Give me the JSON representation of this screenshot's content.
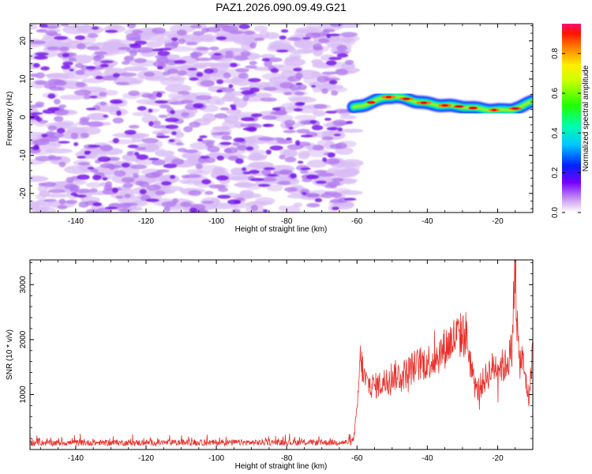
{
  "title": "PAZ1.2026.090.09.49.G21",
  "chart_data": [
    {
      "type": "heatmap",
      "xlabel": "Height of straight line (km)",
      "ylabel": "Frequency (Hz)",
      "xlim": [
        -153,
        -10
      ],
      "ylim": [
        -25,
        24.5
      ],
      "xticks": [
        -140,
        -120,
        -100,
        -80,
        -60,
        -40,
        -20
      ],
      "yticks": [
        -20,
        -10,
        0,
        10,
        20
      ],
      "noise_region_x": [
        -153,
        -61
      ],
      "signal_region_x": [
        -61,
        -10
      ],
      "signal_ridge": {
        "x": [
          -61,
          -58,
          -55,
          -52,
          -49,
          -46,
          -43,
          -40,
          -37,
          -34,
          -31,
          -28,
          -25,
          -22,
          -19,
          -16,
          -13,
          -10
        ],
        "freq": [
          2.5,
          3.2,
          4.2,
          5.2,
          5.4,
          4.8,
          4.1,
          3.6,
          3.2,
          3.0,
          2.8,
          2.5,
          2.2,
          1.9,
          1.8,
          2.0,
          2.8,
          4.3
        ]
      },
      "colorbar": {
        "label": "Normalized spectral amplitude",
        "range": [
          0,
          0.95
        ],
        "ticks": [
          "0.0",
          "0.2",
          "0.4",
          "0.6",
          "0.8"
        ]
      }
    },
    {
      "type": "line",
      "xlabel": "Height of straight line (km)",
      "ylabel": "SNR (10 * v/v)",
      "xlim": [
        -153,
        -10
      ],
      "ylim": [
        0,
        3450
      ],
      "xticks": [
        -140,
        -120,
        -100,
        -80,
        -60,
        -40,
        -20
      ],
      "yticks": [
        1000,
        2000,
        3000
      ],
      "color": "#e8302a",
      "series_keypoints": {
        "x": [
          -153,
          -62,
          -61,
          -60,
          -59,
          -58,
          -57,
          -55,
          -53,
          -50,
          -47,
          -44,
          -41,
          -38,
          -35,
          -32,
          -29,
          -27,
          -26,
          -25,
          -24,
          -22,
          -20,
          -18,
          -16,
          -15,
          -14.5,
          -14,
          -13,
          -12,
          -11,
          -10
        ],
        "y": [
          120,
          130,
          180,
          700,
          1700,
          1300,
          1200,
          1150,
          1200,
          1350,
          1350,
          1500,
          1580,
          1650,
          1850,
          2050,
          2100,
          1300,
          1050,
          1150,
          1250,
          1450,
          1550,
          1500,
          1800,
          3400,
          2400,
          1600,
          1650,
          1250,
          900,
          1950
        ]
      },
      "noise_baseline": 130
    }
  ]
}
